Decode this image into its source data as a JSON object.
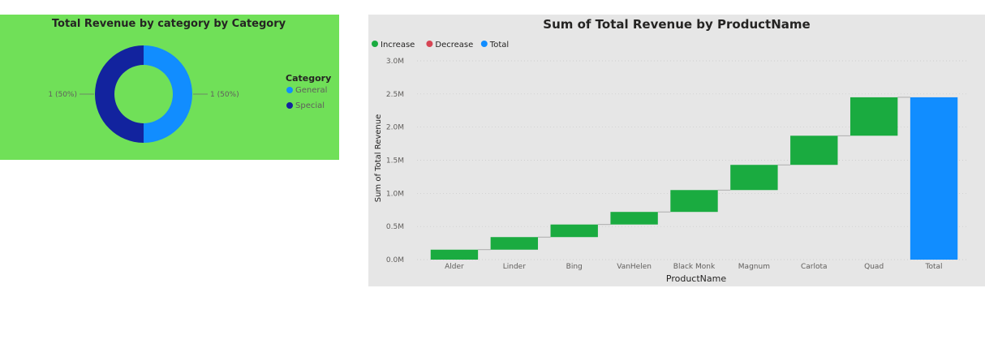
{
  "chart_data": [
    {
      "type": "pie",
      "variant": "donut",
      "title": "Total Revenue by category by Category",
      "legend": {
        "title": "Category",
        "position": "right",
        "entries": [
          {
            "name": "General",
            "color": "#118dff"
          },
          {
            "name": "Special",
            "color": "#12239e"
          }
        ]
      },
      "slices": [
        {
          "name": "General",
          "value": 1,
          "label": "1 (50%)",
          "color": "#118dff"
        },
        {
          "name": "Special",
          "value": 1,
          "label": "1 (50%)",
          "color": "#12239e"
        }
      ],
      "background": "#70e058"
    },
    {
      "type": "bar",
      "variant": "waterfall",
      "title": "Sum of Total Revenue by ProductName",
      "xlabel": "ProductName",
      "ylabel": "Sum of Total Revenue",
      "ylim": [
        0,
        3000000
      ],
      "y_ticks": [
        "0.0M",
        "0.5M",
        "1.0M",
        "1.5M",
        "2.0M",
        "2.5M",
        "3.0M"
      ],
      "y_tick_values": [
        0,
        500000,
        1000000,
        1500000,
        2000000,
        2500000,
        3000000
      ],
      "grid": true,
      "legend": {
        "position": "top-left",
        "entries": [
          {
            "name": "Increase",
            "color": "#1aab40"
          },
          {
            "name": "Decrease",
            "color": "#d64554"
          },
          {
            "name": "Total",
            "color": "#118dff"
          }
        ]
      },
      "categories": [
        "Alder",
        "Linder",
        "Bing",
        "VanHelen",
        "Black Monk",
        "Magnum",
        "Carlota",
        "Quad",
        "Total"
      ],
      "values": [
        150000,
        190000,
        190000,
        190000,
        330000,
        380000,
        440000,
        580000,
        2450000
      ],
      "kinds": [
        "increase",
        "increase",
        "increase",
        "increase",
        "increase",
        "increase",
        "increase",
        "increase",
        "total"
      ],
      "background": "#e6e6e6"
    }
  ]
}
